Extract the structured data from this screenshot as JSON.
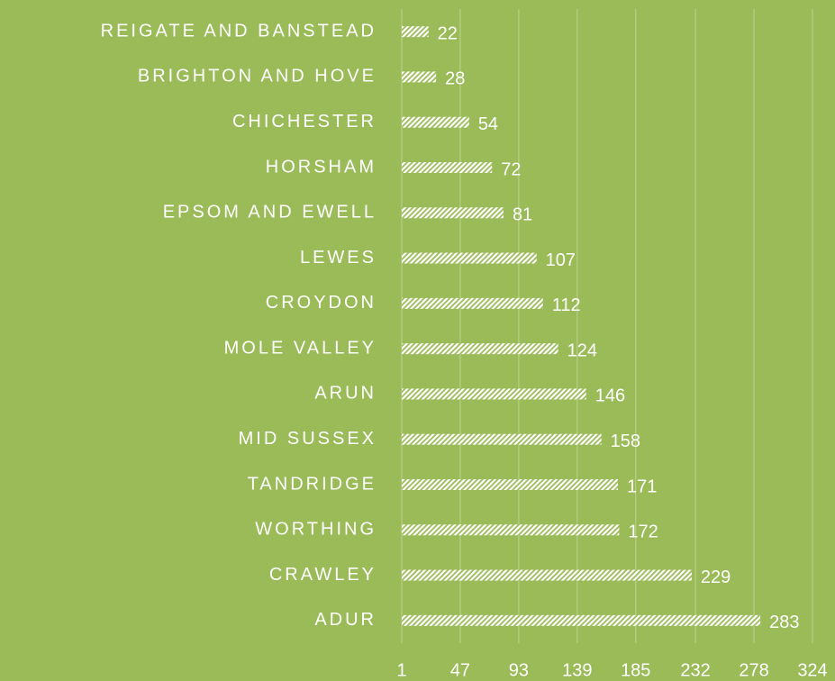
{
  "chart_data": {
    "type": "bar",
    "orientation": "horizontal",
    "categories": [
      "REIGATE AND BANSTEAD",
      "BRIGHTON AND HOVE",
      "CHICHESTER",
      "HORSHAM",
      "EPSOM AND EWELL",
      "LEWES",
      "CROYDON",
      "MOLE VALLEY",
      "ARUN",
      "MID SUSSEX",
      "TANDRIDGE",
      "WORTHING",
      "CRAWLEY",
      "ADUR"
    ],
    "values": [
      22,
      28,
      54,
      72,
      81,
      107,
      112,
      124,
      146,
      158,
      171,
      172,
      229,
      283
    ],
    "color": "#ffffff",
    "background": "#9bbb59",
    "pattern": "hatch",
    "xlim": [
      1,
      324
    ],
    "xticks": [
      1,
      47,
      93,
      139,
      185,
      232,
      278,
      324
    ],
    "grid": true
  }
}
